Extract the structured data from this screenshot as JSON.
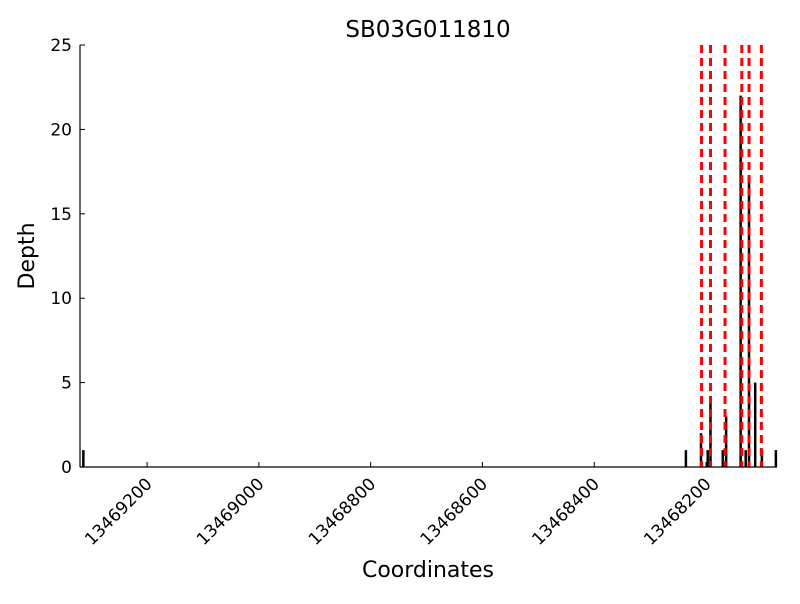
{
  "chart_data": {
    "type": "bar",
    "title": "SB03G011810",
    "xlabel": "Coordinates",
    "ylabel": "Depth",
    "xlim": [
      13469320,
      13468073
    ],
    "x_reversed": true,
    "ylim": [
      0,
      25
    ],
    "xticks": [
      13469200,
      13469000,
      13468800,
      13468600,
      13468400,
      13468200
    ],
    "yticks": [
      0,
      5,
      10,
      15,
      20,
      25
    ],
    "grid": false,
    "bar_color": "#000000",
    "points": [
      {
        "x": 13469314,
        "y": 1
      },
      {
        "x": 13468236,
        "y": 1
      },
      {
        "x": 13468209,
        "y": 2
      },
      {
        "x": 13468197,
        "y": 1
      },
      {
        "x": 13468192,
        "y": 4
      },
      {
        "x": 13468170,
        "y": 1
      },
      {
        "x": 13468164,
        "y": 3
      },
      {
        "x": 13468138,
        "y": 22
      },
      {
        "x": 13468129,
        "y": 1
      },
      {
        "x": 13468123,
        "y": 17
      },
      {
        "x": 13468112,
        "y": 5
      },
      {
        "x": 13468100,
        "y": 1
      },
      {
        "x": 13468075,
        "y": 1
      }
    ],
    "vlines": {
      "color": "#ff0000",
      "style": "dashed",
      "x": [
        13468208,
        13468192,
        13468166,
        13468136,
        13468123,
        13468101
      ]
    }
  }
}
